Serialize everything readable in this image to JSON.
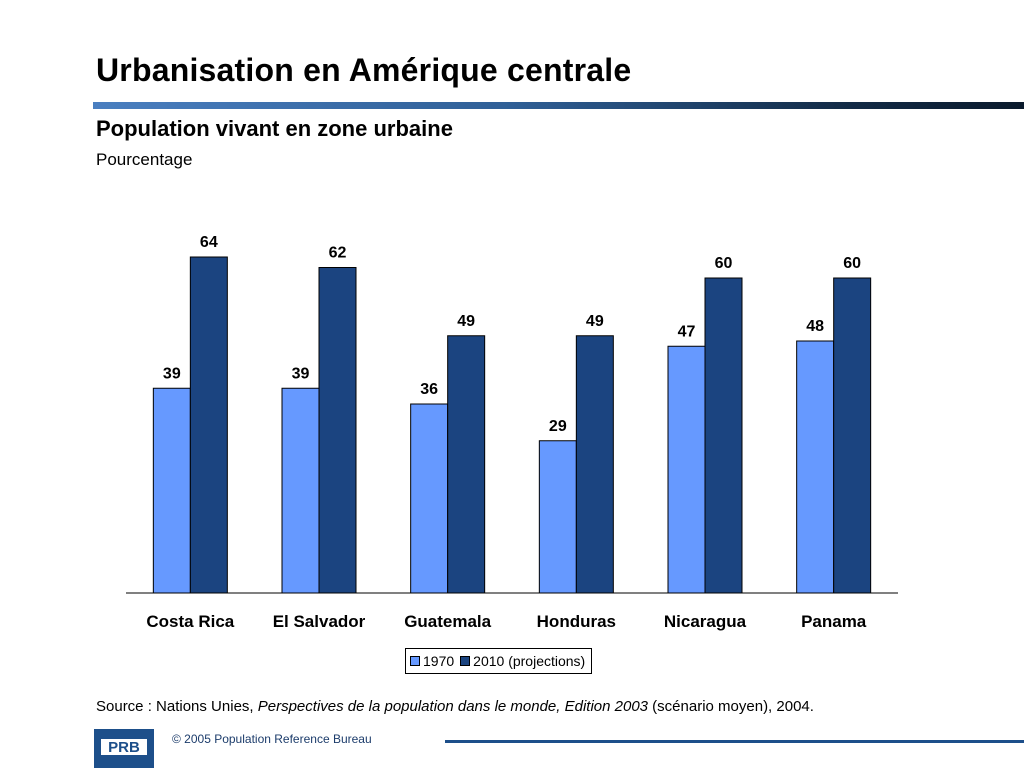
{
  "title": "Urbanisation en Amérique centrale",
  "subtitle": "Population vivant en zone urbaine",
  "unit_label": "Pourcentage",
  "colors": {
    "series_1970": "#6699ff",
    "series_2010": "#1b4480",
    "title_rule": "#2f5f96",
    "footer": "#1d4f8a"
  },
  "chart_data": {
    "type": "bar",
    "title": "Population vivant en zone urbaine",
    "ylabel": "Pourcentage",
    "xlabel": "",
    "categories": [
      "Costa Rica",
      "El Salvador",
      "Guatemala",
      "Honduras",
      "Nicaragua",
      "Panama"
    ],
    "series": [
      {
        "name": "1970",
        "values": [
          39,
          39,
          36,
          29,
          47,
          48
        ],
        "color": "#6699ff"
      },
      {
        "name": "2010 (projections)",
        "values": [
          64,
          62,
          49,
          49,
          60,
          60
        ],
        "color": "#1b4480"
      }
    ],
    "ylim": [
      0,
      77
    ],
    "grid": false,
    "legend_position": "bottom"
  },
  "source": {
    "prefix": "Source : Nations Unies, ",
    "title_italic": "Perspectives de la population dans le monde, Edition 2003",
    "suffix": " (scénario moyen), 2004."
  },
  "footer": {
    "logo_icon": "prb-logo-icon",
    "logo_text": "PRB",
    "copyright": "© 2005 Population Reference Bureau"
  }
}
